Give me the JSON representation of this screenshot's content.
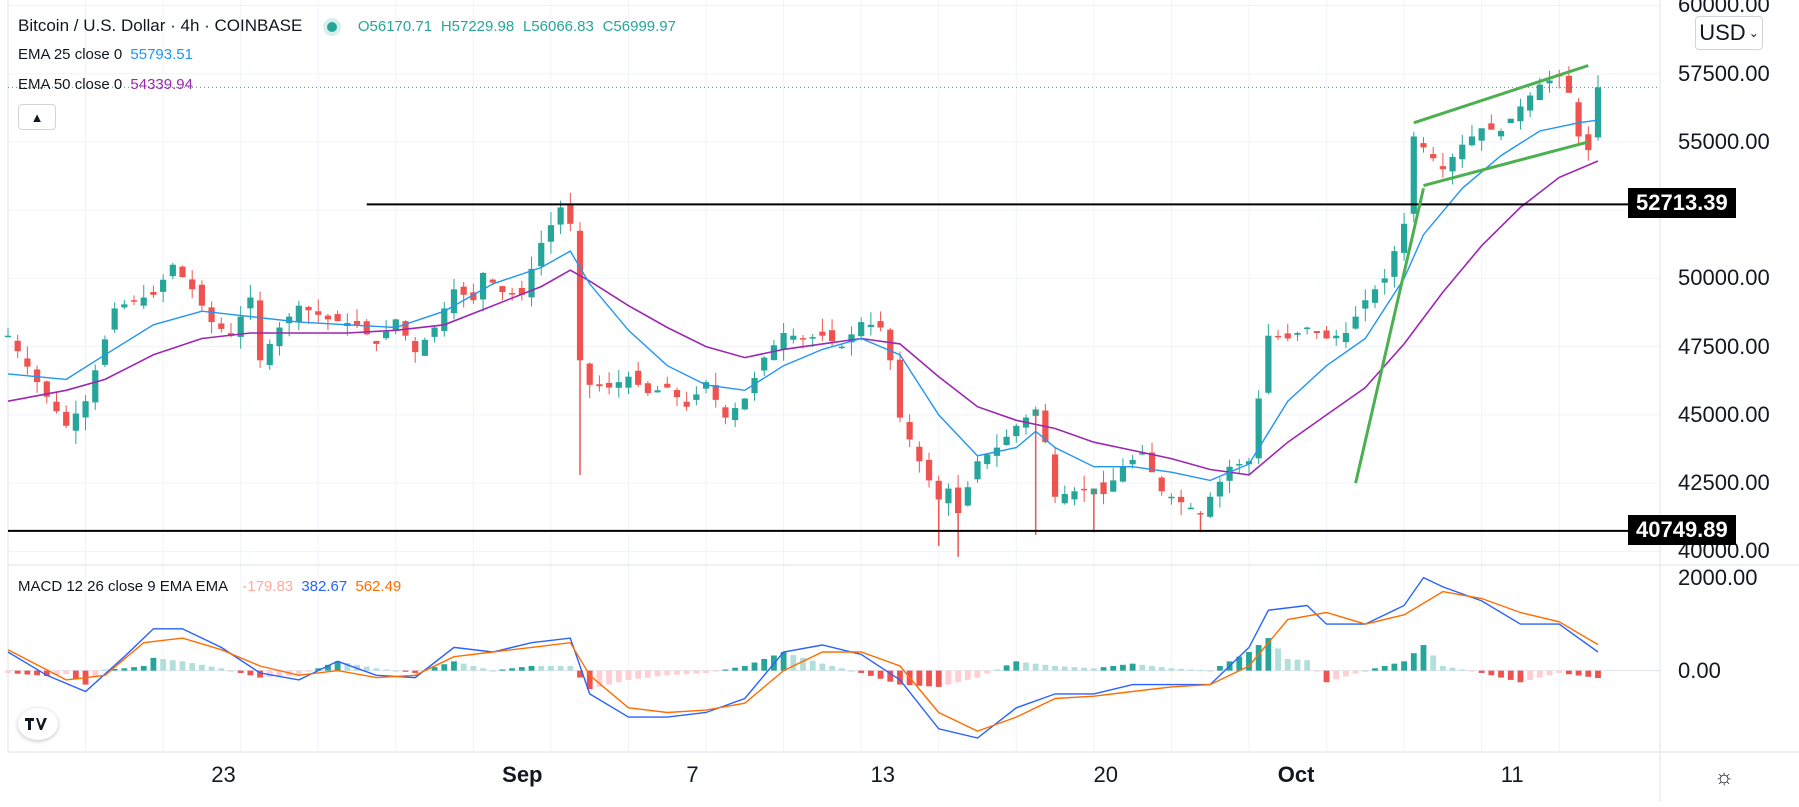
{
  "header": {
    "symbol": "Bitcoin / U.S. Dollar · 4h · COINBASE",
    "ohlc": {
      "o": "O56170.71",
      "h": "H57229.98",
      "l": "L56066.83",
      "c": "C56999.97"
    },
    "currency": "USD"
  },
  "indicators": {
    "ema25": {
      "label": "EMA 25 close 0",
      "value": "55793.51",
      "color": "#2196f3"
    },
    "ema50": {
      "label": "EMA 50 close 0",
      "value": "54339.94",
      "color": "#9c27b0"
    },
    "macd": {
      "label": "MACD 12 26 close 9 EMA EMA",
      "hist": "-179.83",
      "macd": "382.67",
      "signal": "562.49"
    }
  },
  "chart_data": {
    "type": "candlestick",
    "title": "Bitcoin / U.S. Dollar 4h COINBASE",
    "price_axis": {
      "ticks": [
        "60000.00",
        "57500.00",
        "55000.00",
        "50000.00",
        "47500.00",
        "45000.00",
        "42500.00",
        "40000.00"
      ],
      "ylim": [
        39500,
        60200
      ]
    },
    "time_axis": {
      "ticks": [
        "23",
        "Sep",
        "7",
        "13",
        "20",
        "Oct",
        "11"
      ]
    },
    "horizontal_levels": [
      {
        "value": 52713.39,
        "label": "52713.39"
      },
      {
        "value": 40749.89,
        "label": "40749.89"
      }
    ],
    "price_path": [
      [
        0,
        47900
      ],
      [
        3,
        46200
      ],
      [
        6,
        44600
      ],
      [
        8,
        45500
      ],
      [
        11,
        48900
      ],
      [
        13,
        49200
      ],
      [
        15,
        49400
      ],
      [
        17,
        50500
      ],
      [
        19,
        49600
      ],
      [
        21,
        48400
      ],
      [
        23,
        47900
      ],
      [
        25,
        49300
      ],
      [
        26,
        47000
      ],
      [
        28,
        48200
      ],
      [
        30,
        49000
      ],
      [
        33,
        48500
      ],
      [
        36,
        48300
      ],
      [
        38,
        47600
      ],
      [
        40,
        48500
      ],
      [
        42,
        47300
      ],
      [
        44,
        48200
      ],
      [
        46,
        49600
      ],
      [
        48,
        49200
      ],
      [
        49,
        50200
      ],
      [
        51,
        49500
      ],
      [
        53,
        49400
      ],
      [
        55,
        51300
      ],
      [
        57,
        52600
      ],
      [
        58,
        52000
      ],
      [
        59,
        47000
      ],
      [
        60,
        46100
      ],
      [
        62,
        46000
      ],
      [
        64,
        46400
      ],
      [
        66,
        45800
      ],
      [
        68,
        46000
      ],
      [
        70,
        45300
      ],
      [
        72,
        46200
      ],
      [
        74,
        44900
      ],
      [
        76,
        45600
      ],
      [
        78,
        47100
      ],
      [
        80,
        48000
      ],
      [
        82,
        47800
      ],
      [
        84,
        47900
      ],
      [
        86,
        47500
      ],
      [
        88,
        48400
      ],
      [
        90,
        48200
      ],
      [
        91,
        47000
      ],
      [
        92,
        44900
      ],
      [
        94,
        43300
      ],
      [
        96,
        41900
      ],
      [
        97,
        42300
      ],
      [
        98,
        41400
      ],
      [
        100,
        43300
      ],
      [
        102,
        43800
      ],
      [
        104,
        44600
      ],
      [
        106,
        45200
      ],
      [
        107,
        44000
      ],
      [
        108,
        42000
      ],
      [
        110,
        42200
      ],
      [
        112,
        42300
      ],
      [
        113,
        42100
      ],
      [
        115,
        43100
      ],
      [
        117,
        43600
      ],
      [
        119,
        42200
      ],
      [
        121,
        41800
      ],
      [
        123,
        41400
      ],
      [
        124,
        42000
      ],
      [
        126,
        43100
      ],
      [
        128,
        43300
      ],
      [
        130,
        47900
      ],
      [
        132,
        47800
      ],
      [
        134,
        48200
      ],
      [
        136,
        47800
      ],
      [
        138,
        48000
      ],
      [
        140,
        49200
      ],
      [
        142,
        50000
      ],
      [
        144,
        52000
      ],
      [
        145,
        55200
      ],
      [
        146,
        54800
      ],
      [
        148,
        54000
      ],
      [
        150,
        54900
      ],
      [
        152,
        55500
      ],
      [
        154,
        55400
      ],
      [
        156,
        56300
      ],
      [
        158,
        57100
      ],
      [
        160,
        57400
      ],
      [
        161,
        56800
      ],
      [
        162,
        55200
      ],
      [
        163,
        54700
      ],
      [
        164,
        57000
      ]
    ],
    "ema25_path": [
      [
        0,
        46500
      ],
      [
        6,
        46300
      ],
      [
        10,
        47200
      ],
      [
        15,
        48300
      ],
      [
        20,
        48800
      ],
      [
        25,
        48600
      ],
      [
        30,
        48400
      ],
      [
        35,
        48300
      ],
      [
        40,
        48200
      ],
      [
        45,
        48800
      ],
      [
        50,
        49800
      ],
      [
        55,
        50400
      ],
      [
        58,
        51000
      ],
      [
        60,
        49800
      ],
      [
        64,
        48100
      ],
      [
        68,
        46800
      ],
      [
        72,
        46100
      ],
      [
        76,
        45900
      ],
      [
        80,
        46800
      ],
      [
        84,
        47400
      ],
      [
        88,
        47800
      ],
      [
        92,
        47200
      ],
      [
        96,
        45000
      ],
      [
        100,
        43500
      ],
      [
        104,
        43800
      ],
      [
        106,
        44400
      ],
      [
        108,
        43800
      ],
      [
        112,
        43100
      ],
      [
        116,
        43100
      ],
      [
        120,
        42900
      ],
      [
        124,
        42600
      ],
      [
        128,
        43200
      ],
      [
        132,
        45500
      ],
      [
        136,
        46800
      ],
      [
        140,
        47800
      ],
      [
        144,
        50000
      ],
      [
        146,
        51600
      ],
      [
        150,
        53300
      ],
      [
        154,
        54500
      ],
      [
        158,
        55400
      ],
      [
        162,
        55700
      ],
      [
        164,
        55800
      ]
    ],
    "ema50_path": [
      [
        0,
        45500
      ],
      [
        6,
        45900
      ],
      [
        10,
        46300
      ],
      [
        15,
        47200
      ],
      [
        20,
        47800
      ],
      [
        25,
        48000
      ],
      [
        30,
        48000
      ],
      [
        35,
        48000
      ],
      [
        40,
        48100
      ],
      [
        45,
        48300
      ],
      [
        50,
        49000
      ],
      [
        55,
        49700
      ],
      [
        58,
        50300
      ],
      [
        60,
        49900
      ],
      [
        64,
        49000
      ],
      [
        68,
        48200
      ],
      [
        72,
        47500
      ],
      [
        76,
        47100
      ],
      [
        80,
        47400
      ],
      [
        84,
        47600
      ],
      [
        88,
        47800
      ],
      [
        92,
        47600
      ],
      [
        96,
        46400
      ],
      [
        100,
        45300
      ],
      [
        104,
        44800
      ],
      [
        108,
        44500
      ],
      [
        112,
        44000
      ],
      [
        116,
        43700
      ],
      [
        120,
        43400
      ],
      [
        124,
        43000
      ],
      [
        128,
        42800
      ],
      [
        132,
        44000
      ],
      [
        136,
        45000
      ],
      [
        140,
        46000
      ],
      [
        144,
        47600
      ],
      [
        148,
        49500
      ],
      [
        152,
        51200
      ],
      [
        156,
        52600
      ],
      [
        160,
        53700
      ],
      [
        164,
        54300
      ]
    ],
    "trendlines": [
      {
        "name": "channel-upper",
        "from": [
          145,
          55700
        ],
        "to": [
          163,
          57800
        ]
      },
      {
        "name": "channel-lower",
        "from": [
          146,
          53400
        ],
        "to": [
          163,
          55000
        ]
      },
      {
        "name": "rising-support",
        "from": [
          139,
          42500
        ],
        "to": [
          146,
          53300
        ]
      }
    ],
    "macd_axis": {
      "ticks": [
        "2000.00",
        "0.00"
      ],
      "ylim": [
        -1750,
        2250
      ]
    },
    "macd_line": [
      [
        0,
        400
      ],
      [
        4,
        -100
      ],
      [
        8,
        -450
      ],
      [
        12,
        300
      ],
      [
        15,
        900
      ],
      [
        18,
        900
      ],
      [
        22,
        500
      ],
      [
        26,
        -50
      ],
      [
        30,
        -200
      ],
      [
        34,
        200
      ],
      [
        38,
        -100
      ],
      [
        42,
        -150
      ],
      [
        46,
        500
      ],
      [
        50,
        400
      ],
      [
        54,
        600
      ],
      [
        58,
        700
      ],
      [
        60,
        -500
      ],
      [
        64,
        -1000
      ],
      [
        68,
        -1000
      ],
      [
        72,
        -900
      ],
      [
        76,
        -600
      ],
      [
        80,
        400
      ],
      [
        84,
        550
      ],
      [
        88,
        350
      ],
      [
        92,
        -200
      ],
      [
        96,
        -1250
      ],
      [
        100,
        -1450
      ],
      [
        104,
        -800
      ],
      [
        108,
        -500
      ],
      [
        112,
        -500
      ],
      [
        116,
        -300
      ],
      [
        120,
        -300
      ],
      [
        124,
        -300
      ],
      [
        128,
        500
      ],
      [
        130,
        1300
      ],
      [
        134,
        1400
      ],
      [
        136,
        1000
      ],
      [
        140,
        1000
      ],
      [
        144,
        1400
      ],
      [
        146,
        2000
      ],
      [
        148,
        1800
      ],
      [
        152,
        1500
      ],
      [
        156,
        1000
      ],
      [
        160,
        1000
      ],
      [
        162,
        700
      ],
      [
        164,
        400
      ]
    ],
    "signal_line": [
      [
        0,
        450
      ],
      [
        6,
        -200
      ],
      [
        10,
        -100
      ],
      [
        14,
        600
      ],
      [
        18,
        700
      ],
      [
        22,
        450
      ],
      [
        26,
        100
      ],
      [
        30,
        -100
      ],
      [
        34,
        0
      ],
      [
        38,
        -150
      ],
      [
        42,
        -100
      ],
      [
        46,
        300
      ],
      [
        50,
        400
      ],
      [
        54,
        500
      ],
      [
        58,
        600
      ],
      [
        60,
        -100
      ],
      [
        64,
        -800
      ],
      [
        68,
        -900
      ],
      [
        72,
        -850
      ],
      [
        76,
        -700
      ],
      [
        80,
        0
      ],
      [
        84,
        400
      ],
      [
        88,
        400
      ],
      [
        92,
        100
      ],
      [
        96,
        -900
      ],
      [
        100,
        -1300
      ],
      [
        104,
        -1000
      ],
      [
        108,
        -600
      ],
      [
        112,
        -550
      ],
      [
        116,
        -450
      ],
      [
        120,
        -350
      ],
      [
        124,
        -300
      ],
      [
        128,
        100
      ],
      [
        132,
        1100
      ],
      [
        136,
        1250
      ],
      [
        140,
        1000
      ],
      [
        144,
        1200
      ],
      [
        148,
        1700
      ],
      [
        152,
        1550
      ],
      [
        156,
        1250
      ],
      [
        160,
        1050
      ],
      [
        164,
        560
      ]
    ]
  }
}
